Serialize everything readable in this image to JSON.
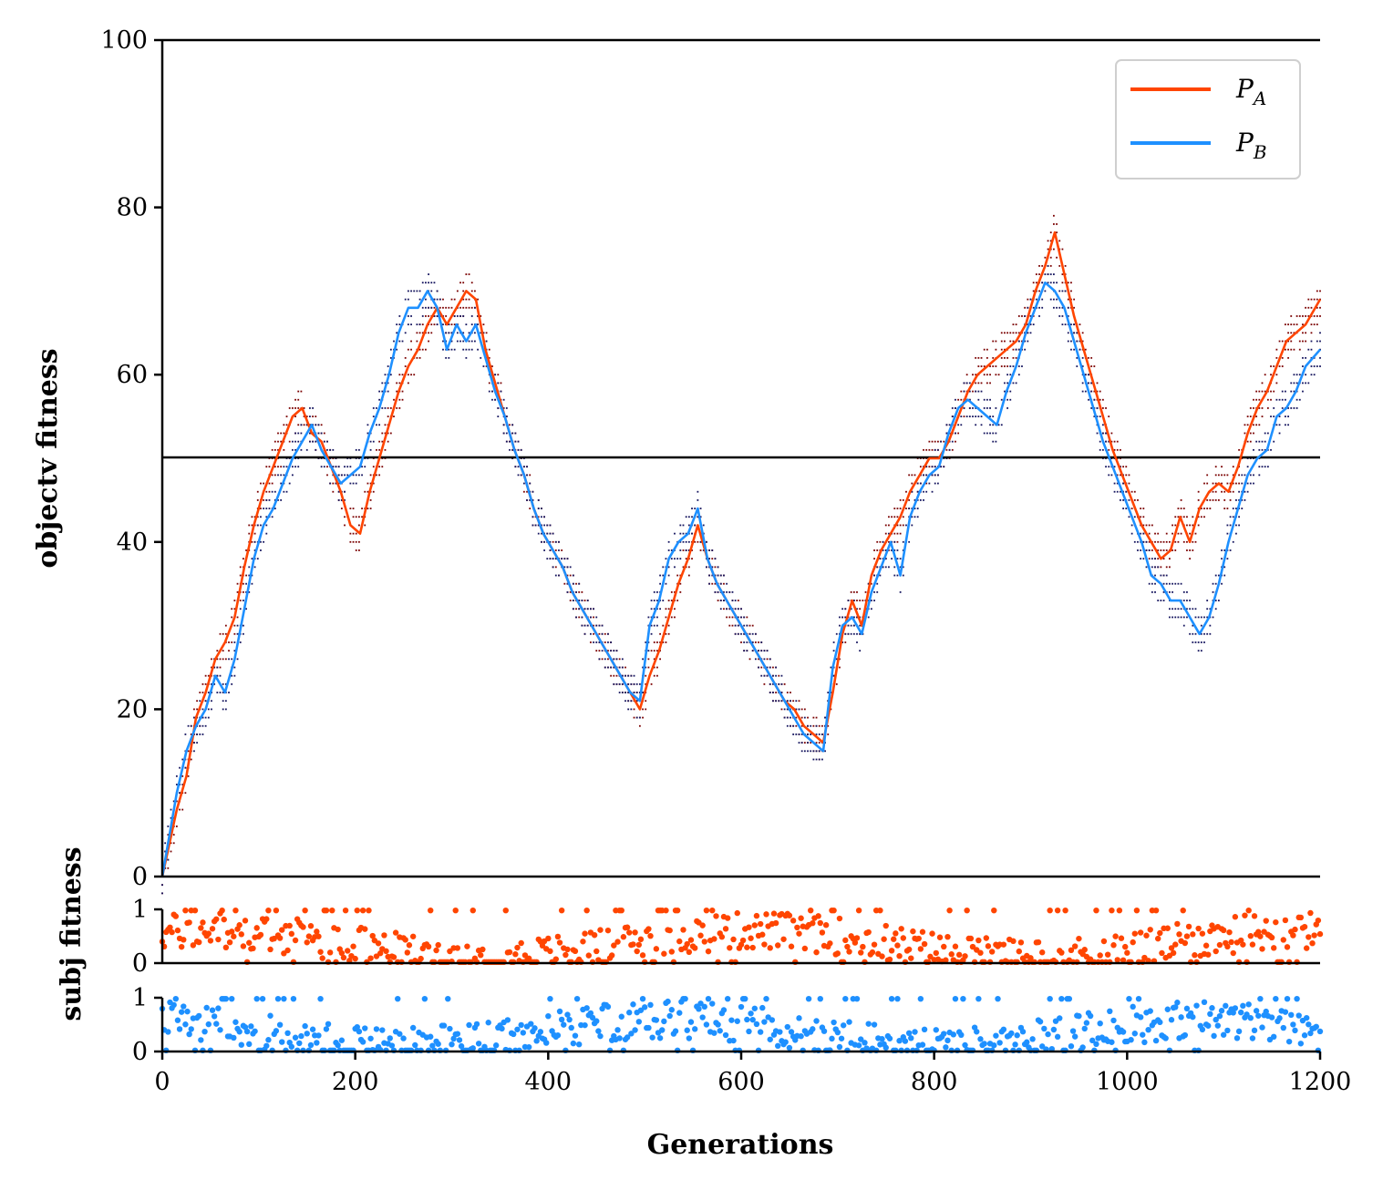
{
  "chart_data": [
    {
      "type": "line",
      "ylabel": "objectv fitness",
      "ylim": [
        0,
        100
      ],
      "xlim": [
        0,
        1200
      ],
      "yticks": [
        "0",
        "20",
        "40",
        "60",
        "80",
        "100"
      ],
      "reference_line": 50,
      "legend": {
        "placement": "top-right",
        "entries": [
          "P_A",
          "P_B"
        ]
      },
      "series": [
        {
          "name": "P_A",
          "color": "#ff4500",
          "x": [
            0,
            15,
            25,
            35,
            45,
            55,
            65,
            75,
            85,
            95,
            105,
            115,
            125,
            135,
            145,
            155,
            165,
            175,
            185,
            195,
            205,
            215,
            225,
            235,
            245,
            255,
            265,
            275,
            285,
            295,
            305,
            315,
            325,
            335,
            345,
            355,
            365,
            375,
            385,
            395,
            405,
            415,
            425,
            435,
            445,
            455,
            465,
            475,
            485,
            495,
            505,
            515,
            525,
            535,
            545,
            555,
            565,
            575,
            585,
            595,
            605,
            615,
            625,
            635,
            645,
            655,
            665,
            675,
            685,
            695,
            705,
            715,
            725,
            735,
            745,
            755,
            765,
            775,
            785,
            795,
            805,
            815,
            825,
            835,
            845,
            855,
            865,
            875,
            885,
            895,
            905,
            915,
            925,
            935,
            945,
            955,
            965,
            975,
            985,
            995,
            1005,
            1015,
            1025,
            1035,
            1045,
            1055,
            1065,
            1075,
            1085,
            1095,
            1105,
            1115,
            1125,
            1135,
            1145,
            1155,
            1165,
            1175,
            1185,
            1200
          ],
          "values": [
            0,
            8,
            12,
            19,
            22,
            26,
            28,
            31,
            37,
            42,
            46,
            49,
            52,
            55,
            56,
            53,
            52,
            49,
            46,
            42,
            41,
            46,
            50,
            54,
            58,
            61,
            63,
            66,
            68,
            66,
            68,
            70,
            69,
            63,
            59,
            55,
            51,
            48,
            44,
            41,
            39,
            37,
            34,
            32,
            30,
            28,
            26,
            24,
            22,
            20,
            24,
            27,
            31,
            35,
            38,
            42,
            38,
            35,
            33,
            31,
            29,
            27,
            25,
            23,
            21,
            20,
            18,
            17,
            16,
            22,
            29,
            33,
            30,
            36,
            39,
            41,
            43,
            46,
            48,
            50,
            50,
            52,
            55,
            58,
            60,
            61,
            62,
            63,
            64,
            66,
            70,
            73,
            77,
            72,
            67,
            63,
            59,
            55,
            51,
            48,
            45,
            42,
            40,
            38,
            39,
            43,
            40,
            44,
            46,
            47,
            46,
            49,
            53,
            56,
            58,
            61,
            64,
            65,
            66,
            69
          ]
        },
        {
          "name": "P_B",
          "color": "#1e90ff",
          "x": [
            0,
            15,
            25,
            35,
            45,
            55,
            65,
            75,
            85,
            95,
            105,
            115,
            125,
            135,
            145,
            155,
            165,
            175,
            185,
            195,
            205,
            215,
            225,
            235,
            245,
            255,
            265,
            275,
            285,
            295,
            305,
            315,
            325,
            335,
            345,
            355,
            365,
            375,
            385,
            395,
            405,
            415,
            425,
            435,
            445,
            455,
            465,
            475,
            485,
            495,
            505,
            515,
            525,
            535,
            545,
            555,
            565,
            575,
            585,
            595,
            605,
            615,
            625,
            635,
            645,
            655,
            665,
            675,
            685,
            695,
            705,
            715,
            725,
            735,
            745,
            755,
            765,
            775,
            785,
            795,
            805,
            815,
            825,
            835,
            845,
            855,
            865,
            875,
            885,
            895,
            905,
            915,
            925,
            935,
            945,
            955,
            965,
            975,
            985,
            995,
            1005,
            1015,
            1025,
            1035,
            1045,
            1055,
            1065,
            1075,
            1085,
            1095,
            1105,
            1115,
            1125,
            1135,
            1145,
            1155,
            1165,
            1175,
            1185,
            1200
          ],
          "values": [
            0,
            10,
            15,
            18,
            20,
            24,
            22,
            26,
            32,
            38,
            42,
            44,
            47,
            50,
            52,
            54,
            51,
            49,
            47,
            48,
            49,
            53,
            56,
            60,
            65,
            68,
            68,
            70,
            68,
            63,
            66,
            64,
            66,
            62,
            58,
            55,
            51,
            48,
            44,
            41,
            39,
            37,
            34,
            32,
            30,
            28,
            26,
            24,
            22,
            21,
            30,
            33,
            38,
            40,
            41,
            44,
            38,
            35,
            33,
            31,
            29,
            27,
            25,
            23,
            21,
            19,
            17,
            16,
            15,
            25,
            30,
            31,
            29,
            34,
            37,
            40,
            36,
            43,
            46,
            48,
            49,
            53,
            56,
            57,
            56,
            55,
            54,
            58,
            61,
            65,
            68,
            71,
            70,
            68,
            64,
            60,
            56,
            52,
            49,
            46,
            43,
            40,
            36,
            35,
            33,
            33,
            31,
            29,
            31,
            35,
            40,
            44,
            48,
            50,
            51,
            55,
            56,
            58,
            61,
            63
          ]
        }
      ]
    },
    {
      "type": "scatter",
      "ylabel": "subj fitness",
      "ylim": [
        0,
        1
      ],
      "yticks": [
        "0",
        "1"
      ],
      "series": [
        {
          "name": "P_A",
          "color": "#ff4500"
        }
      ]
    },
    {
      "type": "scatter",
      "xlabel": "Generations",
      "xlim": [
        0,
        1200
      ],
      "xticks": [
        "0",
        "200",
        "400",
        "600",
        "800",
        "1000",
        "1200"
      ],
      "ylim": [
        0,
        1
      ],
      "yticks": [
        "0",
        "1"
      ],
      "series": [
        {
          "name": "P_B",
          "color": "#1e90ff"
        }
      ]
    }
  ]
}
